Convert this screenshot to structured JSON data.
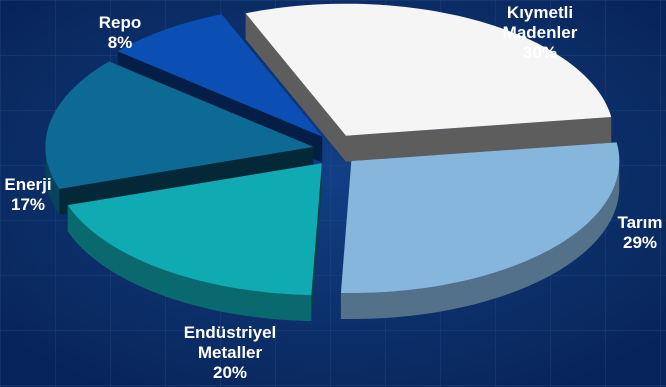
{
  "chart_data": {
    "type": "pie",
    "slices": [
      {
        "label_lines": [
          "Kıymetli",
          "Madenler"
        ],
        "value_label": "30%",
        "value": 30,
        "color": "#f5f5f5"
      },
      {
        "label_lines": [
          "Tarım"
        ],
        "value_label": "29%",
        "value": 29,
        "color": "#86b6dc"
      },
      {
        "label_lines": [
          "Endüstriyel",
          "Metaller"
        ],
        "value_label": "20%",
        "value": 20,
        "color": "#10aab3"
      },
      {
        "label_lines": [
          "Enerji"
        ],
        "value_label": "17%",
        "value": 17,
        "color": "#0d6a95"
      },
      {
        "label_lines": [
          "Repo"
        ],
        "value_label": "8%",
        "value": 8,
        "color": "#0b4fb5"
      }
    ],
    "exploded": true,
    "three_d": true,
    "background_color": "#0b2f6e"
  }
}
